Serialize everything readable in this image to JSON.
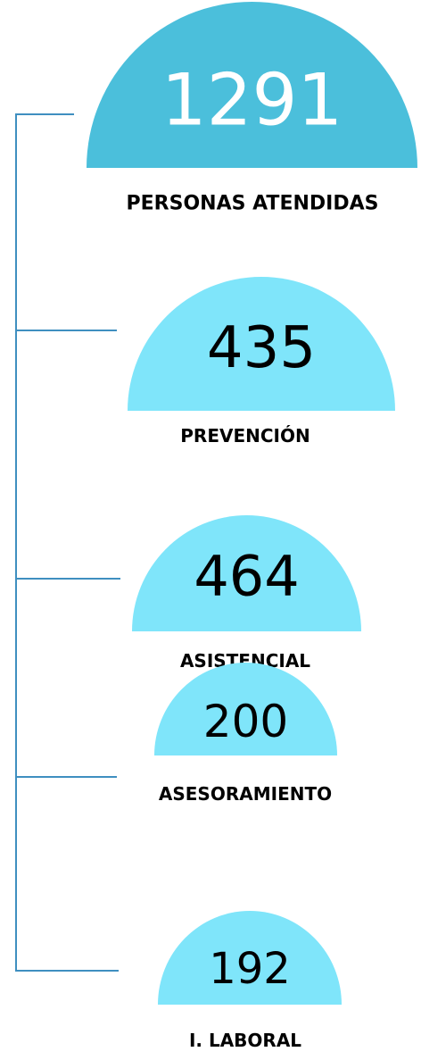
{
  "nodes": [
    {
      "value": 1291,
      "label": "PERSONAS ATENDIDAS"
    },
    {
      "value": 435,
      "label": "PREVENCIÓN"
    },
    {
      "value": 464,
      "label": "ASISTENCIAL"
    },
    {
      "value": 200,
      "label": "ASESORAMIENTO"
    },
    {
      "value": 192,
      "label": "I. LABORAL"
    }
  ]
}
